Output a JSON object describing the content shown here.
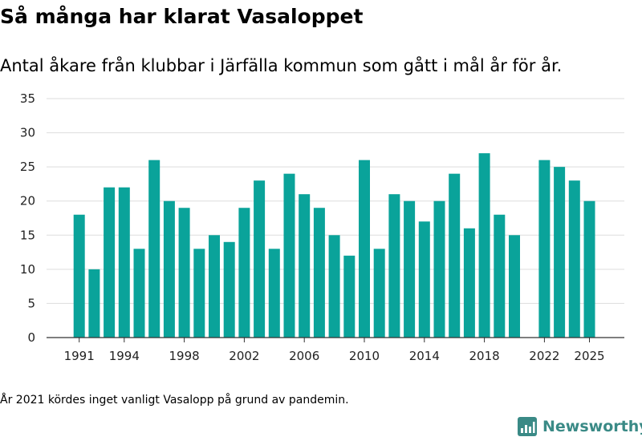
{
  "title": "Så många har klarat Vasaloppet",
  "subtitle": "Antal åkare från klubbar i Järfälla kommun som gått i mål år för år.",
  "footnote": "År 2021 kördes inget vanligt Vasalopp på grund av pandemin.",
  "brand": {
    "name": "Newsworthy",
    "icon": "newsworthy-logo-icon",
    "color": "#3a8a86"
  },
  "chart_data": {
    "type": "bar",
    "x": [
      1991,
      1992,
      1993,
      1994,
      1995,
      1996,
      1997,
      1998,
      1999,
      2000,
      2001,
      2002,
      2003,
      2004,
      2005,
      2006,
      2007,
      2008,
      2009,
      2010,
      2011,
      2012,
      2013,
      2014,
      2015,
      2016,
      2017,
      2018,
      2019,
      2020,
      2022,
      2023,
      2024,
      2025
    ],
    "values": [
      18,
      10,
      22,
      22,
      13,
      26,
      20,
      19,
      13,
      15,
      14,
      19,
      23,
      13,
      24,
      21,
      19,
      15,
      12,
      26,
      13,
      21,
      20,
      17,
      20,
      24,
      16,
      27,
      18,
      15,
      26,
      25,
      23,
      20
    ],
    "x_tick_labels": [
      "1991",
      "1994",
      "1998",
      "2002",
      "2006",
      "2010",
      "2014",
      "2018",
      "2022",
      "2025"
    ],
    "y_tick_labels": [
      "0",
      "5",
      "10",
      "15",
      "20",
      "25",
      "30",
      "35"
    ],
    "ylim": [
      0,
      35
    ],
    "xlim": [
      1990,
      2026
    ],
    "grid": true,
    "bar_color": "#0aa39a",
    "title": "",
    "xlabel": "",
    "ylabel": ""
  }
}
